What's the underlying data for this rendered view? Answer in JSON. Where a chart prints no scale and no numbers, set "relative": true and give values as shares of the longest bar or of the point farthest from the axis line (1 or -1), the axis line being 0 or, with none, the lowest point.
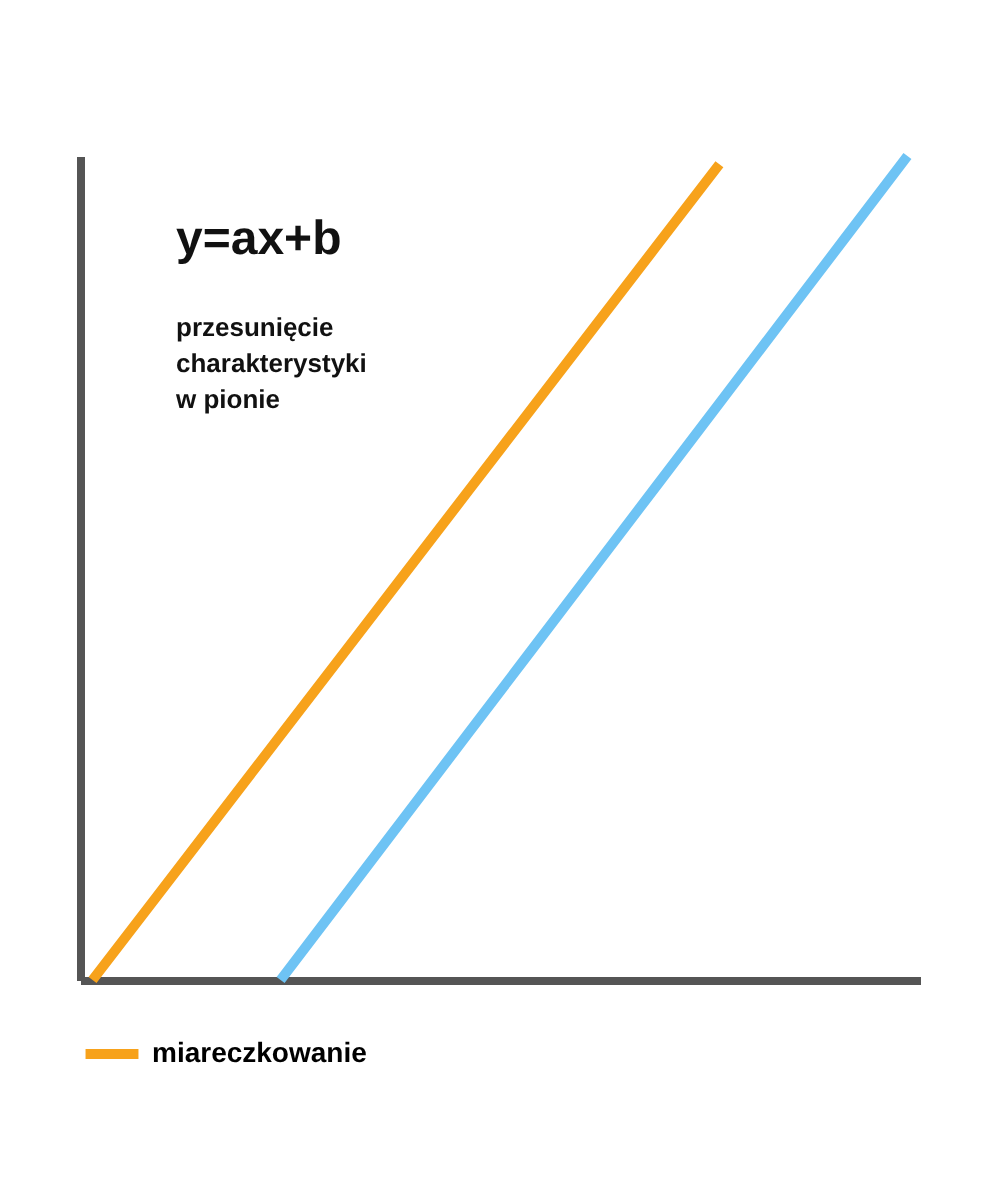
{
  "chart_data": {
    "type": "line",
    "relative": true,
    "categories": [
      null,
      null,
      null,
      null,
      null,
      null,
      null,
      null,
      null,
      null,
      null,
      null,
      null,
      null
    ],
    "series": [
      {
        "name": "miareczkowanie",
        "color": "#f7a21b",
        "values": [
          0,
          0.099,
          0.198,
          0.297,
          0.396,
          0.495,
          0.594,
          0.693,
          0.792,
          0.891,
          0.99,
          null,
          null,
          null
        ]
      },
      {
        "color": "#6ec3f4",
        "values": [
          null,
          null,
          null,
          0,
          0.1,
          0.2,
          0.3,
          0.4,
          0.5,
          0.6,
          0.7,
          0.8,
          0.9,
          1
        ]
      }
    ],
    "annotations": [
      "y=ax+b",
      "przesunięcie\ncharakterystyki\nw pionie"
    ],
    "grid": false,
    "legend": "bottom",
    "tick_labels": false,
    "marker": "none",
    "line_style": "solid"
  }
}
